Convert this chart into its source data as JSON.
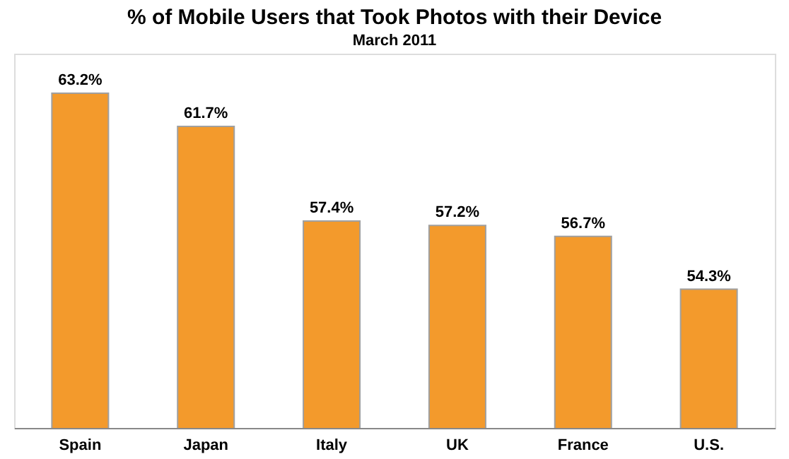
{
  "chart_data": {
    "type": "bar",
    "title": "% of Mobile Users that Took Photos with their Device",
    "subtitle": "March 2011",
    "categories": [
      "Spain",
      "Japan",
      "Italy",
      "UK",
      "France",
      "U.S."
    ],
    "values": [
      63.2,
      61.7,
      57.4,
      57.2,
      56.7,
      54.3
    ],
    "value_labels": [
      "63.2%",
      "61.7%",
      "57.4%",
      "57.2%",
      "56.7%",
      "54.3%"
    ],
    "color": "#f39a2c",
    "ylim": [
      48,
      65
    ],
    "grid": false
  }
}
